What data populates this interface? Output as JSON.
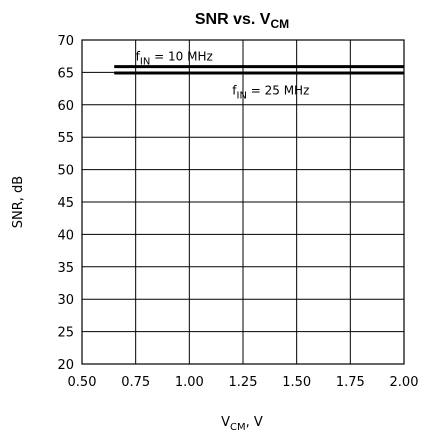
{
  "chart_data": {
    "type": "line",
    "title": {
      "main": "SNR vs. V",
      "sub": "CM"
    },
    "xlabel": {
      "main": "V",
      "sub": "CM",
      "suffix": ", V"
    },
    "ylabel": "SNR, dB",
    "xlim": [
      0.5,
      2.0
    ],
    "ylim": [
      20,
      70
    ],
    "xticks": [
      "0.50",
      "0.75",
      "1.00",
      "1.25",
      "1.50",
      "1.75",
      "2.00"
    ],
    "xtick_values": [
      0.5,
      0.75,
      1.0,
      1.25,
      1.5,
      1.75,
      2.0
    ],
    "yticks": [
      "20",
      "25",
      "30",
      "35",
      "40",
      "45",
      "50",
      "55",
      "60",
      "65",
      "70"
    ],
    "ytick_values": [
      20,
      25,
      30,
      35,
      40,
      45,
      50,
      55,
      60,
      65,
      70
    ],
    "grid": true,
    "series": [
      {
        "name": "fIN = 10 MHz",
        "x": [
          0.65,
          2.0
        ],
        "y": [
          65.9,
          65.9
        ]
      },
      {
        "name": "fIN = 25 MHz",
        "x": [
          0.65,
          2.0
        ],
        "y": [
          64.9,
          64.9
        ]
      }
    ],
    "annotations": [
      {
        "main": "f",
        "sub": "IN",
        "rest": "  =  10 MHz",
        "x": 0.75,
        "y": 66.8
      },
      {
        "main": "f",
        "sub": "IN",
        "rest": "  =  25 MHz",
        "x": 1.2,
        "y": 61.6
      }
    ]
  }
}
